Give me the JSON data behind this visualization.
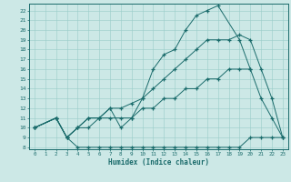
{
  "xlabel": "Humidex (Indice chaleur)",
  "bg_color": "#cce8e6",
  "grid_color": "#99ccc9",
  "line_color": "#1a6b6b",
  "xlim": [
    -0.5,
    23.5
  ],
  "ylim": [
    7.8,
    22.7
  ],
  "xticks": [
    0,
    1,
    2,
    3,
    4,
    5,
    6,
    7,
    8,
    9,
    10,
    11,
    12,
    13,
    14,
    15,
    16,
    17,
    18,
    19,
    20,
    21,
    22,
    23
  ],
  "yticks": [
    8,
    9,
    10,
    11,
    12,
    13,
    14,
    15,
    16,
    17,
    18,
    19,
    20,
    21,
    22
  ],
  "line1_x": [
    0,
    2,
    3,
    4,
    5,
    6,
    7,
    8,
    9,
    10,
    11,
    12,
    13,
    14,
    15,
    16,
    17,
    18,
    19,
    20,
    21,
    22,
    23
  ],
  "line1_y": [
    10,
    11,
    9,
    8,
    8,
    8,
    8,
    8,
    8,
    8,
    8,
    8,
    8,
    8,
    8,
    8,
    8,
    8,
    8,
    9,
    9,
    9,
    9
  ],
  "line2_x": [
    0,
    2,
    3,
    4,
    5,
    6,
    7,
    8,
    9,
    10,
    11,
    12,
    13,
    14,
    15,
    16,
    17,
    19,
    20
  ],
  "line2_y": [
    10,
    11,
    9,
    10,
    11,
    11,
    12,
    10,
    11,
    13,
    16,
    17.5,
    18,
    20,
    21.5,
    22,
    22.5,
    19,
    16
  ],
  "line3_x": [
    0,
    2,
    3,
    4,
    5,
    6,
    7,
    8,
    9,
    10,
    11,
    12,
    13,
    14,
    15,
    16,
    17,
    18,
    19,
    20,
    21,
    22,
    23
  ],
  "line3_y": [
    10,
    11,
    9,
    10,
    10,
    11,
    11,
    11,
    11,
    12,
    12,
    13,
    13,
    14,
    14,
    15,
    15,
    16,
    16,
    16,
    13,
    11,
    9
  ],
  "line4_x": [
    0,
    2,
    3,
    4,
    5,
    6,
    7,
    8,
    9,
    10,
    11,
    12,
    13,
    14,
    15,
    16,
    17,
    18,
    19,
    20,
    21,
    22,
    23
  ],
  "line4_y": [
    10,
    11,
    9,
    10,
    11,
    11,
    12,
    12,
    12.5,
    13,
    14,
    15,
    16,
    17,
    18,
    19,
    19,
    19,
    19.5,
    19,
    16,
    13,
    9
  ]
}
